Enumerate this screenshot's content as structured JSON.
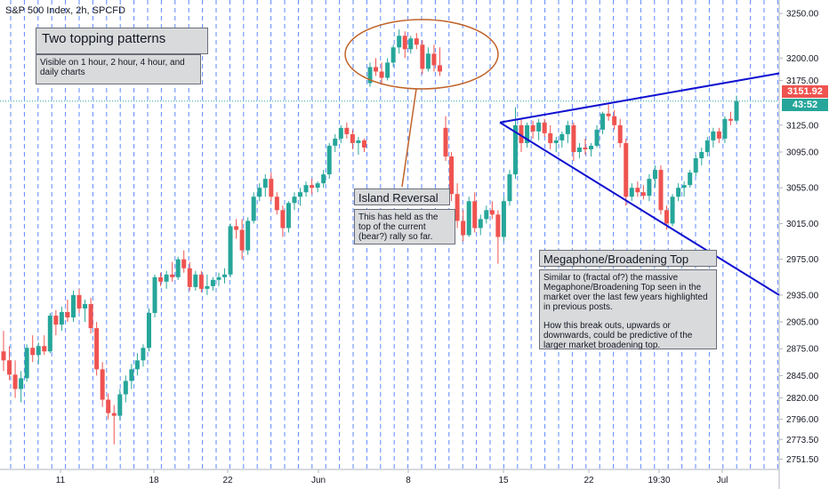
{
  "symbol_title": "S&P 500 Index, 2h, SPCFD",
  "colors": {
    "up": "#26a69a",
    "down": "#ef5350",
    "session_line": "#2962ff",
    "trend_line": "#1010d0",
    "ellipse": "#c0632a",
    "price_tag_red": "#ef5350",
    "price_tag_teal": "#26a69a"
  },
  "annotations": {
    "topping_title": "Two topping patterns",
    "topping_body": "Visible on 1 hour, 2 hour, 4 hour, and daily charts",
    "island_title": "Island Reversal",
    "island_body": "This has held as the top of the current (bear?) rally so far.",
    "megaphone_title": "Megaphone/Broadening Top",
    "megaphone_body_1": "Similar to (fractal of?) the massive Megaphone/Broadening Top seen in the market over the last few years highlighted in previous posts.",
    "megaphone_body_2": "How this break outs, upwards or downwards, could be predictive of the larger market broadening top."
  },
  "price_tags": {
    "last_price": "3151.92",
    "countdown": "43:52"
  },
  "chart_data": {
    "type": "candlestick",
    "title": "S&P 500 Index, 2h, SPCFD",
    "y_axis_ticks": [
      "3250.00",
      "3200.00",
      "3175.00",
      "3125.00",
      "3095.00",
      "3055.00",
      "3015.00",
      "2975.00",
      "2935.00",
      "2905.00",
      "2875.00",
      "2845.00",
      "2820.00",
      "2796.00",
      "2773.50",
      "2751.50"
    ],
    "x_axis_ticks": [
      "11",
      "18",
      "22",
      "Jun",
      "8",
      "15",
      "22",
      "19:30",
      "Jul"
    ],
    "ylim": [
      2740,
      3265
    ],
    "last_price": 3151.92,
    "candles": [
      [
        2872,
        2895,
        2850,
        2862
      ],
      [
        2862,
        2878,
        2840,
        2846
      ],
      [
        2846,
        2862,
        2820,
        2830
      ],
      [
        2830,
        2850,
        2815,
        2842
      ],
      [
        2842,
        2880,
        2838,
        2876
      ],
      [
        2876,
        2890,
        2860,
        2868
      ],
      [
        2868,
        2882,
        2858,
        2878
      ],
      [
        2878,
        2890,
        2868,
        2872
      ],
      [
        2872,
        2915,
        2870,
        2912
      ],
      [
        2912,
        2918,
        2890,
        2902
      ],
      [
        2902,
        2922,
        2895,
        2916
      ],
      [
        2916,
        2930,
        2905,
        2910
      ],
      [
        2910,
        2940,
        2905,
        2935
      ],
      [
        2935,
        2942,
        2915,
        2920
      ],
      [
        2920,
        2930,
        2905,
        2925
      ],
      [
        2925,
        2932,
        2892,
        2898
      ],
      [
        2898,
        2905,
        2845,
        2852
      ],
      [
        2852,
        2860,
        2810,
        2818
      ],
      [
        2818,
        2825,
        2796,
        2803
      ],
      [
        2803,
        2812,
        2768,
        2800
      ],
      [
        2800,
        2830,
        2795,
        2824
      ],
      [
        2824,
        2845,
        2815,
        2839
      ],
      [
        2839,
        2858,
        2830,
        2852
      ],
      [
        2852,
        2870,
        2845,
        2862
      ],
      [
        2862,
        2880,
        2855,
        2876
      ],
      [
        2876,
        2920,
        2872,
        2915
      ],
      [
        2915,
        2958,
        2910,
        2955
      ],
      [
        2955,
        2960,
        2945,
        2950
      ],
      [
        2950,
        2962,
        2942,
        2958
      ],
      [
        2958,
        2972,
        2950,
        2955
      ],
      [
        2955,
        2978,
        2952,
        2975
      ],
      [
        2975,
        2985,
        2960,
        2965
      ],
      [
        2965,
        2972,
        2940,
        2944
      ],
      [
        2944,
        2962,
        2940,
        2958
      ],
      [
        2958,
        2962,
        2938,
        2942
      ],
      [
        2942,
        2958,
        2935,
        2945
      ],
      [
        2945,
        2955,
        2940,
        2952
      ],
      [
        2952,
        2960,
        2945,
        2955
      ],
      [
        2955,
        2965,
        2948,
        2958
      ],
      [
        2958,
        3015,
        2955,
        3012
      ],
      [
        3012,
        3020,
        2998,
        3008
      ],
      [
        3008,
        3020,
        2975,
        2985
      ],
      [
        2985,
        3022,
        2980,
        3018
      ],
      [
        3018,
        3050,
        3015,
        3045
      ],
      [
        3045,
        3060,
        3040,
        3055
      ],
      [
        3055,
        3070,
        3045,
        3065
      ],
      [
        3065,
        3072,
        3040,
        3045
      ],
      [
        3045,
        3050,
        3025,
        3030
      ],
      [
        3030,
        3035,
        3000,
        3010
      ],
      [
        3010,
        3040,
        3005,
        3038
      ],
      [
        3038,
        3050,
        3030,
        3045
      ],
      [
        3045,
        3055,
        3035,
        3050
      ],
      [
        3050,
        3062,
        3045,
        3058
      ],
      [
        3058,
        3065,
        3048,
        3055
      ],
      [
        3055,
        3062,
        3050,
        3060
      ],
      [
        3060,
        3075,
        3055,
        3070
      ],
      [
        3070,
        3105,
        3065,
        3102
      ],
      [
        3102,
        3115,
        3095,
        3110
      ],
      [
        3110,
        3125,
        3105,
        3122
      ],
      [
        3122,
        3128,
        3110,
        3115
      ],
      [
        3115,
        3120,
        3098,
        3105
      ],
      [
        3105,
        3112,
        3092,
        3108
      ],
      [
        3108,
        3110,
        3095,
        3100
      ],
      [
        3172,
        3195,
        3168,
        3190
      ],
      [
        3190,
        3200,
        3180,
        3185
      ],
      [
        3185,
        3195,
        3170,
        3178
      ],
      [
        3178,
        3200,
        3175,
        3195
      ],
      [
        3195,
        3215,
        3190,
        3212
      ],
      [
        3212,
        3232,
        3205,
        3225
      ],
      [
        3225,
        3230,
        3200,
        3210
      ],
      [
        3210,
        3225,
        3205,
        3222
      ],
      [
        3222,
        3228,
        3210,
        3215
      ],
      [
        3215,
        3220,
        3182,
        3188
      ],
      [
        3188,
        3212,
        3185,
        3205
      ],
      [
        3205,
        3215,
        3185,
        3192
      ],
      [
        3192,
        3212,
        3180,
        3185
      ],
      [
        3122,
        3135,
        3085,
        3090
      ],
      [
        3090,
        3095,
        3040,
        3048
      ],
      [
        3048,
        3060,
        3010,
        3018
      ],
      [
        3018,
        3030,
        2995,
        3002
      ],
      [
        3002,
        3045,
        3000,
        3040
      ],
      [
        3040,
        3050,
        3005,
        3010
      ],
      [
        3010,
        3025,
        3002,
        3020
      ],
      [
        3020,
        3035,
        3015,
        3030
      ],
      [
        3030,
        3040,
        3020,
        3025
      ],
      [
        3025,
        3030,
        2970,
        3000
      ],
      [
        3000,
        3045,
        2995,
        3040
      ],
      [
        3040,
        3075,
        3035,
        3070
      ],
      [
        3070,
        3145,
        3065,
        3125
      ],
      [
        3125,
        3132,
        3095,
        3105
      ],
      [
        3105,
        3128,
        3100,
        3125
      ],
      [
        3125,
        3130,
        3110,
        3118
      ],
      [
        3118,
        3132,
        3108,
        3128
      ],
      [
        3128,
        3132,
        3112,
        3116
      ],
      [
        3116,
        3125,
        3098,
        3105
      ],
      [
        3105,
        3112,
        3095,
        3108
      ],
      [
        3108,
        3118,
        3100,
        3115
      ],
      [
        3115,
        3130,
        3105,
        3125
      ],
      [
        3125,
        3128,
        3085,
        3095
      ],
      [
        3095,
        3105,
        3088,
        3100
      ],
      [
        3100,
        3110,
        3092,
        3098
      ],
      [
        3098,
        3105,
        3090,
        3102
      ],
      [
        3102,
        3125,
        3100,
        3120
      ],
      [
        3120,
        3140,
        3115,
        3138
      ],
      [
        3138,
        3148,
        3130,
        3135
      ],
      [
        3135,
        3142,
        3120,
        3125
      ],
      [
        3125,
        3132,
        3100,
        3105
      ],
      [
        3105,
        3110,
        3035,
        3045
      ],
      [
        3045,
        3060,
        3040,
        3055
      ],
      [
        3055,
        3062,
        3045,
        3050
      ],
      [
        3050,
        3058,
        3042,
        3046
      ],
      [
        3046,
        3070,
        3040,
        3065
      ],
      [
        3065,
        3080,
        3055,
        3075
      ],
      [
        3075,
        3080,
        3025,
        3030
      ],
      [
        3030,
        3035,
        3008,
        3015
      ],
      [
        3015,
        3048,
        3012,
        3045
      ],
      [
        3045,
        3060,
        3040,
        3055
      ],
      [
        3055,
        3062,
        3045,
        3058
      ],
      [
        3058,
        3075,
        3055,
        3072
      ],
      [
        3072,
        3092,
        3068,
        3088
      ],
      [
        3088,
        3100,
        3080,
        3095
      ],
      [
        3095,
        3112,
        3090,
        3108
      ],
      [
        3108,
        3122,
        3100,
        3118
      ],
      [
        3118,
        3122,
        3105,
        3110
      ],
      [
        3110,
        3135,
        3105,
        3132
      ],
      [
        3132,
        3140,
        3125,
        3130
      ],
      [
        3130,
        3158,
        3128,
        3152
      ]
    ]
  }
}
